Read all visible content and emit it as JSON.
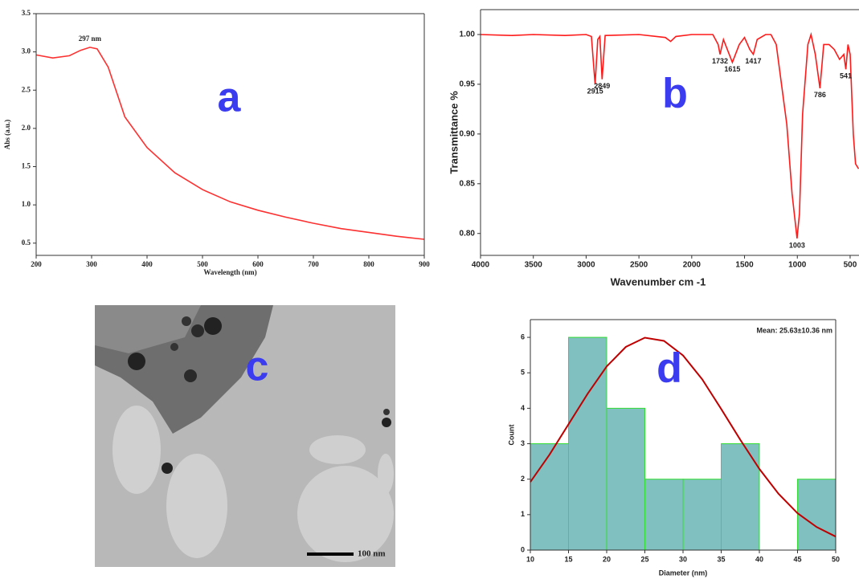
{
  "chart_data": [
    {
      "type": "line",
      "panel_label": "a",
      "x_label": "Wavelength (nm)",
      "y_label": "Abs (a.u.)",
      "x": [
        200,
        230,
        260,
        280,
        297,
        310,
        330,
        360,
        400,
        450,
        500,
        550,
        600,
        650,
        700,
        750,
        800,
        850,
        900
      ],
      "values": [
        2.96,
        2.92,
        2.95,
        3.02,
        3.06,
        3.04,
        2.8,
        2.15,
        1.75,
        1.42,
        1.2,
        1.04,
        0.93,
        0.84,
        0.76,
        0.69,
        0.64,
        0.59,
        0.55
      ],
      "color": "#ff3030",
      "peak_label": {
        "x": 297,
        "label": "297 nm"
      },
      "xlim": [
        200,
        900
      ],
      "ylim": [
        0.34,
        3.5
      ],
      "xticks": [
        200,
        300,
        400,
        500,
        600,
        700,
        800,
        900
      ],
      "yticks": [
        0.5,
        {
          "value": 1,
          "label": "1.0"
        },
        1.5,
        {
          "value": 2,
          "label": "2.0"
        },
        2.5,
        {
          "value": 3,
          "label": "3.0"
        },
        3.5
      ]
    },
    {
      "type": "line",
      "panel_label": "b",
      "x_label": "Wavenumber cm -1",
      "y_label": "Transmittance  %",
      "x": [
        4000,
        3700,
        3500,
        3200,
        3000,
        2950,
        2915,
        2890,
        2870,
        2849,
        2820,
        2500,
        2250,
        2200,
        2150,
        2000,
        1800,
        1750,
        1732,
        1700,
        1615,
        1550,
        1500,
        1450,
        1417,
        1380,
        1300,
        1250,
        1200,
        1100,
        1050,
        1003,
        980,
        950,
        900,
        870,
        830,
        786,
        750,
        700,
        650,
        600,
        560,
        541,
        520,
        500,
        470,
        449,
        420
      ],
      "values": [
        1.0,
        0.999,
        1.0,
        0.999,
        1.0,
        0.998,
        0.95,
        0.995,
        0.998,
        0.955,
        0.999,
        1.0,
        0.997,
        0.993,
        0.998,
        1.0,
        1.0,
        0.99,
        0.98,
        0.995,
        0.972,
        0.99,
        0.997,
        0.985,
        0.98,
        0.995,
        1.0,
        1.0,
        0.99,
        0.91,
        0.84,
        0.795,
        0.82,
        0.92,
        0.99,
        1.0,
        0.98,
        0.946,
        0.99,
        0.99,
        0.985,
        0.975,
        0.98,
        0.965,
        0.99,
        0.98,
        0.9,
        0.87,
        0.865
      ],
      "color": "#ff1a1a",
      "peaks": [
        2915,
        2849,
        1732,
        1615,
        1417,
        1003,
        786,
        541
      ],
      "xlim": [
        4000,
        416
      ],
      "ylim": [
        0.778,
        1.025
      ],
      "xticks": [
        4000,
        3500,
        3000,
        2500,
        2000,
        1500,
        1000,
        500
      ],
      "yticks": [
        {
          "value": 0.8,
          "label": "0.80"
        },
        0.85,
        {
          "value": 0.9,
          "label": "0.90"
        },
        0.95,
        {
          "value": 1,
          "label": "1.00"
        }
      ]
    },
    {
      "type": "histogram",
      "panel_label": "d",
      "x_label": "Diameter (nm)",
      "y_label": "Count",
      "annotation": "Mean: 25.63±10.36 nm",
      "bins": [
        10,
        15,
        20,
        25,
        30,
        35,
        40,
        45,
        50
      ],
      "values": [
        3,
        6,
        4,
        2,
        2,
        3,
        0,
        2
      ],
      "color": "#80c0c0",
      "edge_color": "#33dd33",
      "fit": {
        "x": [
          10,
          12.5,
          15,
          17.5,
          20,
          22.5,
          25,
          27.5,
          30,
          32.5,
          35,
          37.5,
          40,
          42.5,
          45,
          47.5,
          50
        ],
        "values": [
          1.92,
          2.69,
          3.55,
          4.41,
          5.18,
          5.73,
          5.99,
          5.9,
          5.49,
          4.82,
          3.98,
          3.11,
          2.29,
          1.59,
          1.04,
          0.65,
          0.38
        ],
        "color": "#c00000"
      },
      "xlim": [
        10,
        50
      ],
      "ylim": [
        0,
        6.5
      ],
      "xticks": [
        10,
        15,
        20,
        25,
        30,
        35,
        40,
        45,
        50
      ],
      "yticks": [
        0,
        1,
        2,
        3,
        4,
        5,
        6
      ]
    }
  ],
  "image": {
    "panel_label": "c",
    "scale_bar": "100 nm"
  }
}
